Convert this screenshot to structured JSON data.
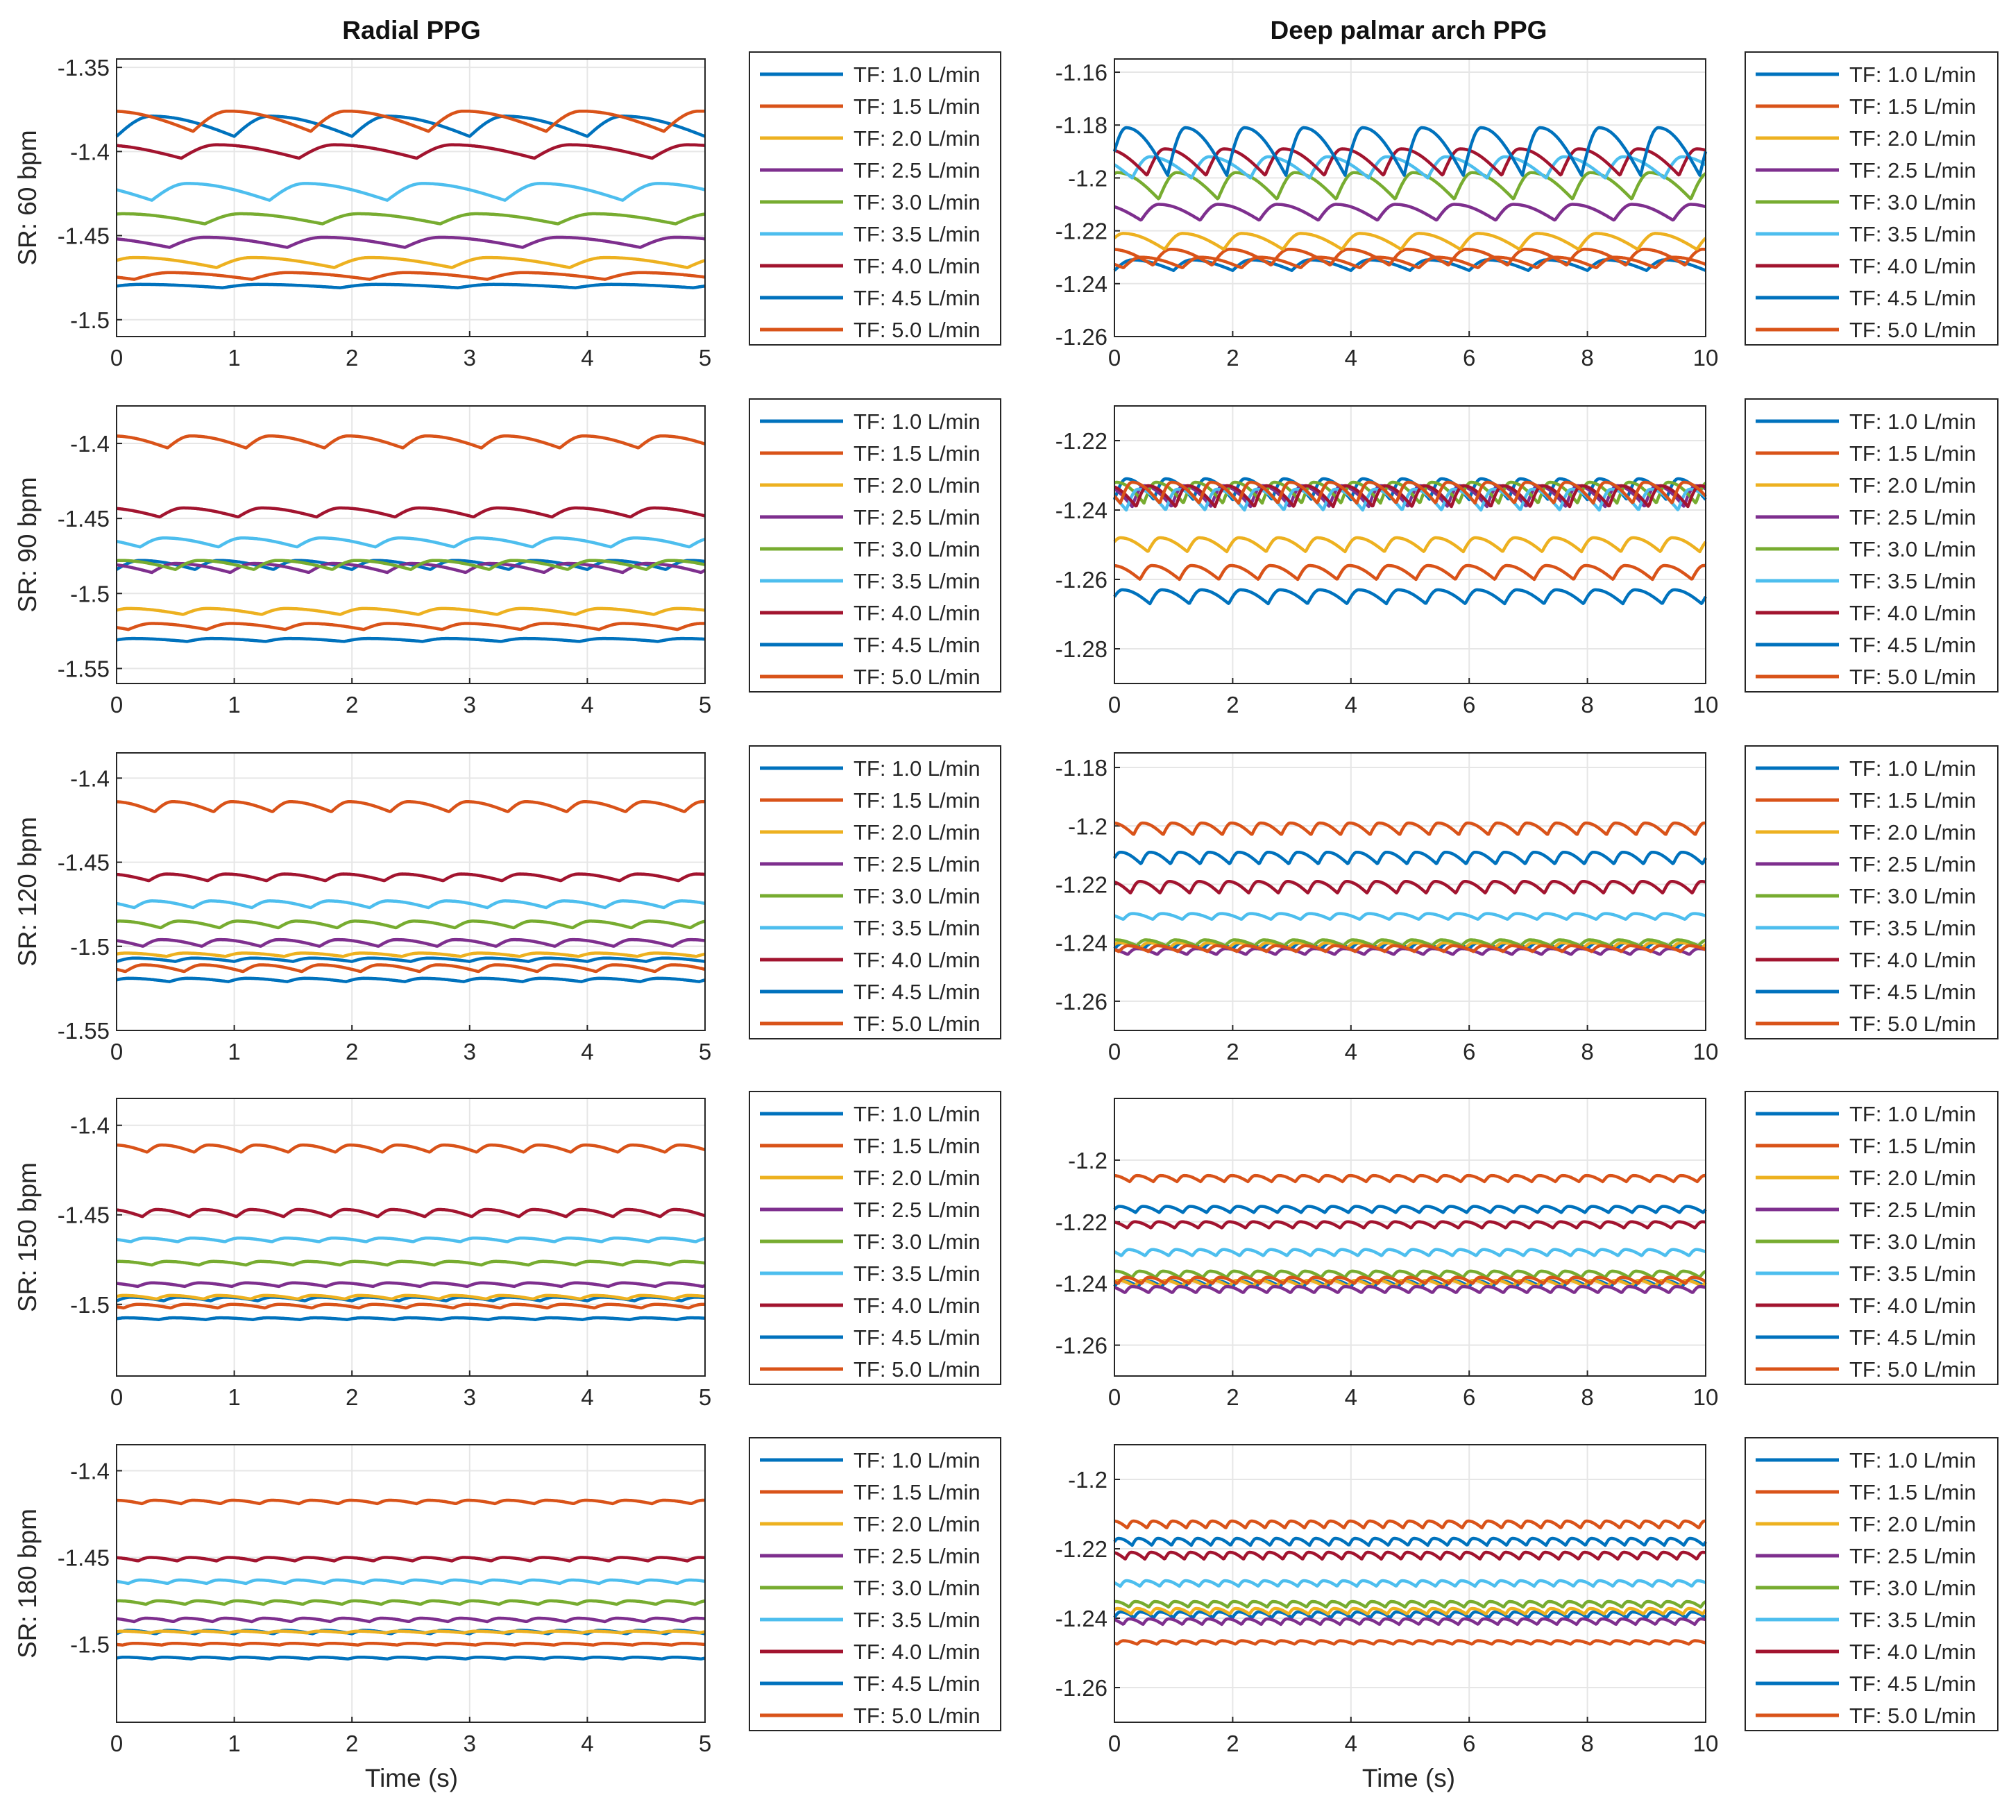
{
  "figure": {
    "xlabel": "Time (s)",
    "column_titles": [
      "Radial PPG",
      "Deep palmar arch PPG"
    ],
    "row_labels": [
      "SR: 60 bpm",
      "SR: 90 bpm",
      "SR: 120 bpm",
      "SR: 150 bpm",
      "SR: 180 bpm"
    ],
    "legend": [
      "TF: 1.0 L/min",
      "TF: 1.5 L/min",
      "TF: 2.0 L/min",
      "TF: 2.5 L/min",
      "TF: 3.0 L/min",
      "TF: 3.5 L/min",
      "TF: 4.0 L/min",
      "TF: 4.5 L/min",
      "TF: 5.0 L/min"
    ],
    "colors": [
      "#0072BD",
      "#D95319",
      "#EDB120",
      "#7E2F8E",
      "#77AC30",
      "#4DBEEE",
      "#A2142F",
      "#0072BD",
      "#D95319"
    ]
  },
  "chart_data": [
    {
      "type": "line",
      "title": "Radial PPG",
      "ylabel": "SR: 60 bpm",
      "xlabel": "",
      "heart_rate_bpm": 60,
      "xlim": [
        0,
        5
      ],
      "ylim": [
        -1.51,
        -1.345
      ],
      "xticks": [
        "0",
        "1",
        "2",
        "3",
        "4",
        "5"
      ],
      "yticks": [
        "-1.35",
        "-1.4",
        "-1.45",
        "-1.5"
      ],
      "ytick_values": [
        -1.35,
        -1.4,
        -1.45,
        -1.5
      ],
      "series": [
        {
          "name": "TF: 1.0 L/min",
          "center": -1.385,
          "amplitude": 0.006
        },
        {
          "name": "TF: 1.5 L/min",
          "center": -1.382,
          "amplitude": 0.006
        },
        {
          "name": "TF: 2.0 L/min",
          "center": -1.466,
          "amplitude": 0.003
        },
        {
          "name": "TF: 2.5 L/min",
          "center": -1.454,
          "amplitude": 0.003
        },
        {
          "name": "TF: 3.0 L/min",
          "center": -1.44,
          "amplitude": 0.003
        },
        {
          "name": "TF: 3.5 L/min",
          "center": -1.424,
          "amplitude": 0.005
        },
        {
          "name": "TF: 4.0 L/min",
          "center": -1.4,
          "amplitude": 0.004
        },
        {
          "name": "TF: 4.5 L/min",
          "center": -1.48,
          "amplitude": 0.001
        },
        {
          "name": "TF: 5.0 L/min",
          "center": -1.474,
          "amplitude": 0.002
        }
      ]
    },
    {
      "type": "line",
      "title": "Deep palmar arch PPG",
      "ylabel": "",
      "xlabel": "",
      "heart_rate_bpm": 60,
      "xlim": [
        0,
        10
      ],
      "ylim": [
        -1.26,
        -1.155
      ],
      "xticks": [
        "0",
        "2",
        "4",
        "6",
        "8",
        "10"
      ],
      "yticks": [
        "-1.16",
        "-1.18",
        "-1.2",
        "-1.22",
        "-1.24",
        "-1.26"
      ],
      "ytick_values": [
        -1.16,
        -1.18,
        -1.2,
        -1.22,
        -1.24,
        -1.26
      ],
      "series": [
        {
          "name": "TF: 1.0 L/min",
          "center": -1.233,
          "amplitude": 0.002
        },
        {
          "name": "TF: 1.5 L/min",
          "center": -1.23,
          "amplitude": 0.003
        },
        {
          "name": "TF: 2.0 L/min",
          "center": -1.224,
          "amplitude": 0.003
        },
        {
          "name": "TF: 2.5 L/min",
          "center": -1.213,
          "amplitude": 0.003
        },
        {
          "name": "TF: 3.0 L/min",
          "center": -1.203,
          "amplitude": 0.005
        },
        {
          "name": "TF: 3.5 L/min",
          "center": -1.196,
          "amplitude": 0.004
        },
        {
          "name": "TF: 4.0 L/min",
          "center": -1.194,
          "amplitude": 0.005
        },
        {
          "name": "TF: 4.5 L/min",
          "center": -1.19,
          "amplitude": 0.009
        },
        {
          "name": "TF: 5.0 L/min",
          "center": -1.232,
          "amplitude": 0.002
        }
      ]
    },
    {
      "type": "line",
      "title": "",
      "ylabel": "SR: 90 bpm",
      "xlabel": "",
      "heart_rate_bpm": 90,
      "xlim": [
        0,
        5
      ],
      "ylim": [
        -1.56,
        -1.375
      ],
      "xticks": [
        "0",
        "1",
        "2",
        "3",
        "4",
        "5"
      ],
      "yticks": [
        "-1.4",
        "-1.45",
        "-1.5",
        "-1.55"
      ],
      "ytick_values": [
        -1.4,
        -1.45,
        -1.5,
        -1.55
      ],
      "series": [
        {
          "name": "TF: 1.0 L/min",
          "center": -1.481,
          "amplitude": 0.003
        },
        {
          "name": "TF: 1.5 L/min",
          "center": -1.399,
          "amplitude": 0.004
        },
        {
          "name": "TF: 2.0 L/min",
          "center": -1.512,
          "amplitude": 0.002
        },
        {
          "name": "TF: 2.5 L/min",
          "center": -1.483,
          "amplitude": 0.003
        },
        {
          "name": "TF: 3.0 L/min",
          "center": -1.481,
          "amplitude": 0.003
        },
        {
          "name": "TF: 3.5 L/min",
          "center": -1.466,
          "amplitude": 0.003
        },
        {
          "name": "TF: 4.0 L/min",
          "center": -1.446,
          "amplitude": 0.003
        },
        {
          "name": "TF: 4.5 L/min",
          "center": -1.531,
          "amplitude": 0.001
        },
        {
          "name": "TF: 5.0 L/min",
          "center": -1.522,
          "amplitude": 0.002
        }
      ]
    },
    {
      "type": "line",
      "title": "",
      "ylabel": "",
      "xlabel": "",
      "heart_rate_bpm": 90,
      "xlim": [
        0,
        10
      ],
      "ylim": [
        -1.29,
        -1.21
      ],
      "xticks": [
        "0",
        "2",
        "4",
        "6",
        "8",
        "10"
      ],
      "yticks": [
        "-1.22",
        "-1.24",
        "-1.26",
        "-1.28"
      ],
      "ytick_values": [
        -1.22,
        -1.24,
        -1.26,
        -1.28
      ],
      "series": [
        {
          "name": "TF: 1.0 L/min",
          "center": -1.234,
          "amplitude": 0.003
        },
        {
          "name": "TF: 1.5 L/min",
          "center": -1.258,
          "amplitude": 0.002
        },
        {
          "name": "TF: 2.0 L/min",
          "center": -1.25,
          "amplitude": 0.002
        },
        {
          "name": "TF: 2.5 L/min",
          "center": -1.236,
          "amplitude": 0.003
        },
        {
          "name": "TF: 3.0 L/min",
          "center": -1.235,
          "amplitude": 0.003
        },
        {
          "name": "TF: 3.5 L/min",
          "center": -1.237,
          "amplitude": 0.003
        },
        {
          "name": "TF: 4.0 L/min",
          "center": -1.236,
          "amplitude": 0.003
        },
        {
          "name": "TF: 4.5 L/min",
          "center": -1.265,
          "amplitude": 0.002
        },
        {
          "name": "TF: 5.0 L/min",
          "center": -1.235,
          "amplitude": 0.003
        }
      ]
    },
    {
      "type": "line",
      "title": "",
      "ylabel": "SR: 120 bpm",
      "xlabel": "",
      "heart_rate_bpm": 120,
      "xlim": [
        0,
        5
      ],
      "ylim": [
        -1.55,
        -1.385
      ],
      "xticks": [
        "0",
        "1",
        "2",
        "3",
        "4",
        "5"
      ],
      "yticks": [
        "-1.4",
        "-1.45",
        "-1.5",
        "-1.55"
      ],
      "ytick_values": [
        -1.4,
        -1.45,
        -1.5,
        -1.55
      ],
      "series": [
        {
          "name": "TF: 1.0 L/min",
          "center": -1.508,
          "amplitude": 0.001
        },
        {
          "name": "TF: 1.5 L/min",
          "center": -1.417,
          "amplitude": 0.003
        },
        {
          "name": "TF: 2.0 L/min",
          "center": -1.505,
          "amplitude": 0.001
        },
        {
          "name": "TF: 2.5 L/min",
          "center": -1.498,
          "amplitude": 0.002
        },
        {
          "name": "TF: 3.0 L/min",
          "center": -1.487,
          "amplitude": 0.002
        },
        {
          "name": "TF: 3.5 L/min",
          "center": -1.475,
          "amplitude": 0.002
        },
        {
          "name": "TF: 4.0 L/min",
          "center": -1.459,
          "amplitude": 0.002
        },
        {
          "name": "TF: 4.5 L/min",
          "center": -1.52,
          "amplitude": 0.001
        },
        {
          "name": "TF: 5.0 L/min",
          "center": -1.513,
          "amplitude": 0.002
        }
      ]
    },
    {
      "type": "line",
      "title": "",
      "ylabel": "",
      "xlabel": "",
      "heart_rate_bpm": 120,
      "xlim": [
        0,
        10
      ],
      "ylim": [
        -1.27,
        -1.175
      ],
      "xticks": [
        "0",
        "2",
        "4",
        "6",
        "8",
        "10"
      ],
      "yticks": [
        "-1.18",
        "-1.2",
        "-1.22",
        "-1.24",
        "-1.26"
      ],
      "ytick_values": [
        -1.18,
        -1.2,
        -1.22,
        -1.24,
        -1.26
      ],
      "series": [
        {
          "name": "TF: 1.0 L/min",
          "center": -1.241,
          "amplitude": 0.001
        },
        {
          "name": "TF: 1.5 L/min",
          "center": -1.201,
          "amplitude": 0.002
        },
        {
          "name": "TF: 2.0 L/min",
          "center": -1.241,
          "amplitude": 0.001
        },
        {
          "name": "TF: 2.5 L/min",
          "center": -1.243,
          "amplitude": 0.001
        },
        {
          "name": "TF: 3.0 L/min",
          "center": -1.24,
          "amplitude": 0.001
        },
        {
          "name": "TF: 3.5 L/min",
          "center": -1.231,
          "amplitude": 0.001
        },
        {
          "name": "TF: 4.0 L/min",
          "center": -1.221,
          "amplitude": 0.002
        },
        {
          "name": "TF: 4.5 L/min",
          "center": -1.211,
          "amplitude": 0.002
        },
        {
          "name": "TF: 5.0 L/min",
          "center": -1.242,
          "amplitude": 0.001
        }
      ]
    },
    {
      "type": "line",
      "title": "",
      "ylabel": "SR: 150 bpm",
      "xlabel": "",
      "heart_rate_bpm": 150,
      "xlim": [
        0,
        5
      ],
      "ylim": [
        -1.54,
        -1.385
      ],
      "xticks": [
        "0",
        "1",
        "2",
        "3",
        "4",
        "5"
      ],
      "yticks": [
        "-1.4",
        "-1.45",
        "-1.5"
      ],
      "ytick_values": [
        -1.4,
        -1.45,
        -1.5
      ],
      "series": [
        {
          "name": "TF: 1.0 L/min",
          "center": -1.497,
          "amplitude": 0.001
        },
        {
          "name": "TF: 1.5 L/min",
          "center": -1.413,
          "amplitude": 0.002
        },
        {
          "name": "TF: 2.0 L/min",
          "center": -1.496,
          "amplitude": 0.001
        },
        {
          "name": "TF: 2.5 L/min",
          "center": -1.489,
          "amplitude": 0.001
        },
        {
          "name": "TF: 3.0 L/min",
          "center": -1.477,
          "amplitude": 0.001
        },
        {
          "name": "TF: 3.5 L/min",
          "center": -1.464,
          "amplitude": 0.001
        },
        {
          "name": "TF: 4.0 L/min",
          "center": -1.449,
          "amplitude": 0.002
        },
        {
          "name": "TF: 4.5 L/min",
          "center": -1.508,
          "amplitude": 0.0005
        },
        {
          "name": "TF: 5.0 L/min",
          "center": -1.501,
          "amplitude": 0.001
        }
      ]
    },
    {
      "type": "line",
      "title": "",
      "ylabel": "",
      "xlabel": "",
      "heart_rate_bpm": 150,
      "xlim": [
        0,
        10
      ],
      "ylim": [
        -1.27,
        -1.18
      ],
      "xticks": [
        "0",
        "2",
        "4",
        "6",
        "8",
        "10"
      ],
      "yticks": [
        "-1.2",
        "-1.22",
        "-1.24",
        "-1.26"
      ],
      "ytick_values": [
        -1.2,
        -1.22,
        -1.24,
        -1.26
      ],
      "series": [
        {
          "name": "TF: 1.0 L/min",
          "center": -1.24,
          "amplitude": 0.001
        },
        {
          "name": "TF: 1.5 L/min",
          "center": -1.206,
          "amplitude": 0.001
        },
        {
          "name": "TF: 2.0 L/min",
          "center": -1.24,
          "amplitude": 0.001
        },
        {
          "name": "TF: 2.5 L/min",
          "center": -1.242,
          "amplitude": 0.001
        },
        {
          "name": "TF: 3.0 L/min",
          "center": -1.237,
          "amplitude": 0.001
        },
        {
          "name": "TF: 3.5 L/min",
          "center": -1.23,
          "amplitude": 0.001
        },
        {
          "name": "TF: 4.0 L/min",
          "center": -1.221,
          "amplitude": 0.001
        },
        {
          "name": "TF: 4.5 L/min",
          "center": -1.216,
          "amplitude": 0.001
        },
        {
          "name": "TF: 5.0 L/min",
          "center": -1.239,
          "amplitude": 0.001
        }
      ]
    },
    {
      "type": "line",
      "title": "Time (s)",
      "ylabel": "SR: 180 bpm",
      "xlabel": "Time (s)",
      "heart_rate_bpm": 180,
      "xlim": [
        0,
        5
      ],
      "ylim": [
        -1.545,
        -1.385
      ],
      "xticks": [
        "0",
        "1",
        "2",
        "3",
        "4",
        "5"
      ],
      "yticks": [
        "-1.4",
        "-1.45",
        "-1.5"
      ],
      "ytick_values": [
        -1.4,
        -1.45,
        -1.5
      ],
      "series": [
        {
          "name": "TF: 1.0 L/min",
          "center": -1.493,
          "amplitude": 0.001
        },
        {
          "name": "TF: 1.5 L/min",
          "center": -1.418,
          "amplitude": 0.001
        },
        {
          "name": "TF: 2.0 L/min",
          "center": -1.493,
          "amplitude": 0.0005
        },
        {
          "name": "TF: 2.5 L/min",
          "center": -1.486,
          "amplitude": 0.001
        },
        {
          "name": "TF: 3.0 L/min",
          "center": -1.476,
          "amplitude": 0.001
        },
        {
          "name": "TF: 3.5 L/min",
          "center": -1.464,
          "amplitude": 0.001
        },
        {
          "name": "TF: 4.0 L/min",
          "center": -1.451,
          "amplitude": 0.001
        },
        {
          "name": "TF: 4.5 L/min",
          "center": -1.508,
          "amplitude": 0.0005
        },
        {
          "name": "TF: 5.0 L/min",
          "center": -1.5,
          "amplitude": 0.0005
        }
      ]
    },
    {
      "type": "line",
      "title": "",
      "ylabel": "",
      "xlabel": "Time (s)",
      "heart_rate_bpm": 180,
      "xlim": [
        0,
        10
      ],
      "ylim": [
        -1.27,
        -1.19
      ],
      "xticks": [
        "0",
        "2",
        "4",
        "6",
        "8",
        "10"
      ],
      "yticks": [
        "-1.2",
        "-1.22",
        "-1.24",
        "-1.26"
      ],
      "ytick_values": [
        -1.2,
        -1.22,
        -1.24,
        -1.26
      ],
      "series": [
        {
          "name": "TF: 1.0 L/min",
          "center": -1.239,
          "amplitude": 0.0008
        },
        {
          "name": "TF: 1.5 L/min",
          "center": -1.213,
          "amplitude": 0.001
        },
        {
          "name": "TF: 2.0 L/min",
          "center": -1.238,
          "amplitude": 0.0008
        },
        {
          "name": "TF: 2.5 L/min",
          "center": -1.241,
          "amplitude": 0.0008
        },
        {
          "name": "TF: 3.0 L/min",
          "center": -1.236,
          "amplitude": 0.0008
        },
        {
          "name": "TF: 3.5 L/min",
          "center": -1.23,
          "amplitude": 0.0008
        },
        {
          "name": "TF: 4.0 L/min",
          "center": -1.222,
          "amplitude": 0.001
        },
        {
          "name": "TF: 4.5 L/min",
          "center": -1.218,
          "amplitude": 0.001
        },
        {
          "name": "TF: 5.0 L/min",
          "center": -1.247,
          "amplitude": 0.0005
        }
      ]
    }
  ]
}
